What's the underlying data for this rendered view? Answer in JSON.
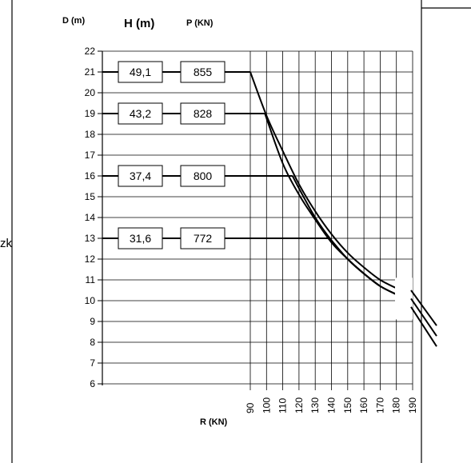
{
  "headers": {
    "d": "D (m)",
    "h": "H (m)",
    "p": "P (KN)"
  },
  "page_fragment": "zk",
  "chart_data": {
    "type": "line",
    "title": "",
    "xlabel": "R (KN)",
    "ylabel": "D (m)",
    "xlim": [
      90,
      190
    ],
    "ylim": [
      6,
      22
    ],
    "x_ticks": [
      90,
      100,
      110,
      120,
      130,
      140,
      150,
      160,
      170,
      180,
      190
    ],
    "y_ticks": [
      22,
      21,
      20,
      19,
      18,
      17,
      16,
      15,
      14,
      13,
      12,
      11,
      10,
      9,
      8,
      7,
      6
    ],
    "grid": true,
    "rows": [
      {
        "d": 21,
        "h": "49,1",
        "p": "855"
      },
      {
        "d": 19,
        "h": "43,2",
        "p": "828"
      },
      {
        "d": 16,
        "h": "37,4",
        "p": "800"
      },
      {
        "d": 13,
        "h": "31,6",
        "p": "772"
      }
    ],
    "series": [
      {
        "x": [
          90,
          100,
          110,
          120,
          130,
          140,
          150,
          160,
          170,
          180
        ],
        "y": [
          21,
          18.9,
          17.2,
          15.6,
          14.3,
          13.2,
          12.3,
          11.6,
          11.0,
          10.6
        ]
      },
      {
        "x": [
          99,
          110,
          120,
          130,
          140,
          150,
          160,
          170,
          180
        ],
        "y": [
          19,
          16.6,
          15.1,
          13.9,
          12.8,
          12.0,
          11.3,
          10.7,
          10.3
        ]
      },
      {
        "x": [
          116,
          120,
          130,
          140,
          150,
          160,
          170,
          180
        ],
        "y": [
          16,
          15.4,
          14.0,
          12.9,
          12.0,
          11.3,
          10.7,
          10.3
        ]
      },
      {
        "x": [
          139,
          140,
          150,
          160,
          170,
          180
        ],
        "y": [
          13,
          12.9,
          12.0,
          11.3,
          10.7,
          10.3
        ]
      }
    ]
  }
}
